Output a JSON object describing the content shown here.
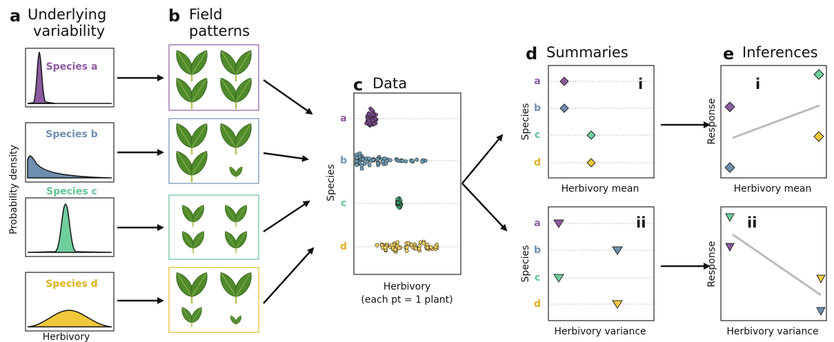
{
  "panel_a": {
    "letter": "a",
    "title_lines": [
      "Underlying",
      "variability"
    ],
    "species": [
      "Species a",
      "Species b",
      "Species c",
      "Species d"
    ],
    "y_label": "Probability density",
    "x_label": "Herbivory"
  },
  "panel_b": {
    "letter": "b",
    "title_lines": [
      "Field",
      "patterns"
    ]
  },
  "panel_c": {
    "letter": "c",
    "title": "Data",
    "rows": [
      "a",
      "b",
      "c",
      "d"
    ],
    "y_label": "Species",
    "x_label": "Herbivory",
    "x_note": "(each pt = 1 plant)"
  },
  "panel_d": {
    "letter": "d",
    "title": "Summaries",
    "subpanels": [
      {
        "numeral": "i",
        "rows": [
          "a",
          "b",
          "c",
          "d"
        ],
        "y_label": "Species",
        "x_label": "Herbivory mean"
      },
      {
        "numeral": "ii",
        "rows": [
          "a",
          "b",
          "c",
          "d"
        ],
        "y_label": "Species",
        "x_label": "Herbivory variance"
      }
    ]
  },
  "panel_e": {
    "letter": "e",
    "title": "Inferences",
    "subpanels": [
      {
        "numeral": "i",
        "y_label": "Response",
        "x_label": "Herbivory mean"
      },
      {
        "numeral": "ii",
        "y_label": "Response",
        "x_label": "Herbivory variance"
      }
    ]
  }
}
